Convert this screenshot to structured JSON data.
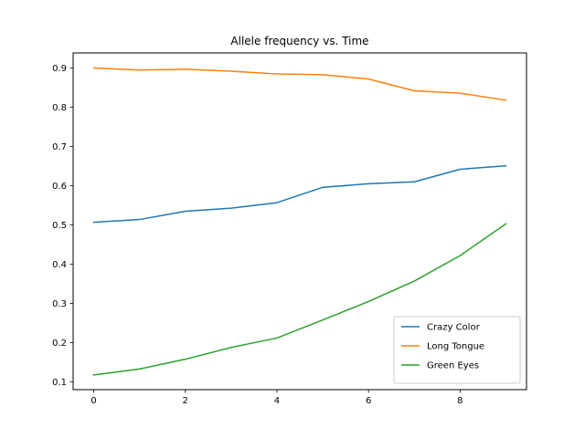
{
  "chart_data": {
    "type": "line",
    "title": "Allele frequency vs. Time",
    "xlabel": "",
    "ylabel": "",
    "xlim": [
      -0.45,
      9.45
    ],
    "ylim": [
      0.0805,
      0.9385
    ],
    "x": [
      0,
      1,
      2,
      3,
      4,
      5,
      6,
      7,
      8,
      9
    ],
    "xticks": [
      0,
      2,
      4,
      6,
      8
    ],
    "yticks": [
      0.1,
      0.2,
      0.3,
      0.4,
      0.5,
      0.6,
      0.7,
      0.8,
      0.9
    ],
    "grid": false,
    "legend_position": "lower-right",
    "series": [
      {
        "name": "Crazy Color",
        "color": "#1f77b4",
        "values": [
          0.507,
          0.514,
          0.535,
          0.543,
          0.557,
          0.596,
          0.605,
          0.61,
          0.642,
          0.651
        ]
      },
      {
        "name": "Long Tongue",
        "color": "#ff7f0e",
        "values": [
          0.9,
          0.895,
          0.897,
          0.892,
          0.885,
          0.883,
          0.872,
          0.842,
          0.836,
          0.818
        ]
      },
      {
        "name": "Green Eyes",
        "color": "#2ca02c",
        "values": [
          0.118,
          0.133,
          0.158,
          0.188,
          0.212,
          0.258,
          0.305,
          0.357,
          0.422,
          0.503
        ]
      }
    ]
  }
}
